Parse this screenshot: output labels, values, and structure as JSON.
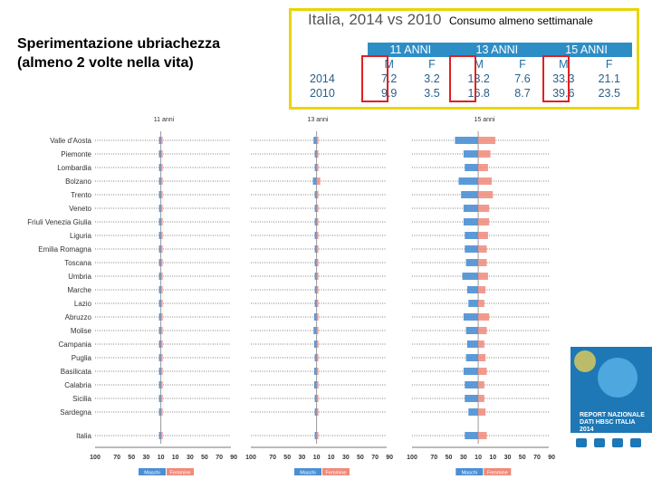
{
  "slide": {
    "title_line1": "Sperimentazione ubriachezza",
    "title_line2": "(almeno 2 volte nella vita)"
  },
  "summary": {
    "title": "Italia, 2014 vs 2010",
    "note": "Consumo almeno settimanale",
    "age_groups": [
      "11 ANNI",
      "13 ANNI",
      "15 ANNI"
    ],
    "sexes": [
      "M",
      "F"
    ],
    "rows": [
      {
        "year": "2014",
        "values": [
          "7.2",
          "3.2",
          "13.2",
          "7.6",
          "33.3",
          "21.1"
        ]
      },
      {
        "year": "2010",
        "values": [
          "9.9",
          "3.5",
          "16.8",
          "8.7",
          "39.6",
          "23.5"
        ]
      }
    ]
  },
  "report_logo": {
    "text": "REPORT NAZIONALE DATI HBSC ITALIA 2014",
    "bg_color": "#1d78b5"
  },
  "chart_data": {
    "type": "bar",
    "orientation": "horizontal-diverging",
    "panels": [
      "11 anni",
      "13 anni",
      "15 anni"
    ],
    "categories": [
      "Valle d'Aosta",
      "Piemonte",
      "Lombardia",
      "Bolzano",
      "Trento",
      "Veneto",
      "Friuli Venezia Giulia",
      "Liguria",
      "Emilia Romagna",
      "Toscana",
      "Umbria",
      "Marche",
      "Lazio",
      "Abruzzo",
      "Molise",
      "Campania",
      "Puglia",
      "Basilicata",
      "Calabria",
      "Sicilia",
      "Sardegna",
      "Italia"
    ],
    "xticks": [
      "100",
      "70",
      "50",
      "30",
      "10",
      "10",
      "30",
      "50",
      "70",
      "90"
    ],
    "legend": [
      "Maschi",
      "Femmine"
    ],
    "colors": {
      "males": "#4a8fd4",
      "females": "#f08a7a"
    },
    "series": [
      {
        "name": "Maschi",
        "panel": "11 anni",
        "values": [
          0.5,
          0.3,
          0.3,
          0.5,
          0.3,
          0.3,
          0.3,
          0.3,
          0.3,
          0.3,
          0.5,
          0.8,
          0.3,
          0.3,
          0.3,
          0.3,
          0.3,
          0.3,
          0.8,
          0.5,
          0.3,
          0.3
        ]
      },
      {
        "name": "Femmine",
        "panel": "11 anni",
        "values": [
          0.3,
          0.3,
          0.3,
          0.5,
          0.3,
          0.3,
          0.3,
          0.3,
          0.3,
          0.3,
          0.3,
          0.5,
          0.3,
          0.3,
          0.3,
          0.3,
          0.3,
          0.3,
          0.5,
          0.3,
          0.3,
          0.3
        ]
      },
      {
        "name": "Maschi",
        "panel": "13 anni",
        "values": [
          2.5,
          1.5,
          1.2,
          3,
          1.5,
          1.2,
          1.2,
          1.5,
          1.5,
          1.2,
          1.2,
          1.2,
          1.5,
          2,
          2.5,
          2,
          1.5,
          2,
          2,
          1.5,
          1.2,
          1.5
        ]
      },
      {
        "name": "Femmine",
        "panel": "13 anni",
        "values": [
          1,
          0.6,
          0.5,
          3,
          0.6,
          0.5,
          0.5,
          0.6,
          0.5,
          0.5,
          0.6,
          0.5,
          0.5,
          0.5,
          1,
          0.6,
          0.6,
          0.6,
          0.6,
          0.5,
          0.5,
          0.6
        ]
      },
      {
        "name": "Maschi",
        "panel": "15 anni",
        "values": [
          19,
          12,
          11,
          16,
          14,
          12,
          12,
          11,
          11,
          10,
          13,
          9,
          8,
          12,
          10,
          9,
          10,
          12,
          11,
          11,
          8,
          11
        ]
      },
      {
        "name": "Femmine",
        "panel": "15 anni",
        "values": [
          14,
          10,
          8,
          11,
          12,
          9,
          9,
          8,
          7,
          7,
          8,
          6,
          5,
          9,
          7,
          5,
          6,
          7,
          5,
          5,
          6,
          7
        ]
      }
    ]
  }
}
